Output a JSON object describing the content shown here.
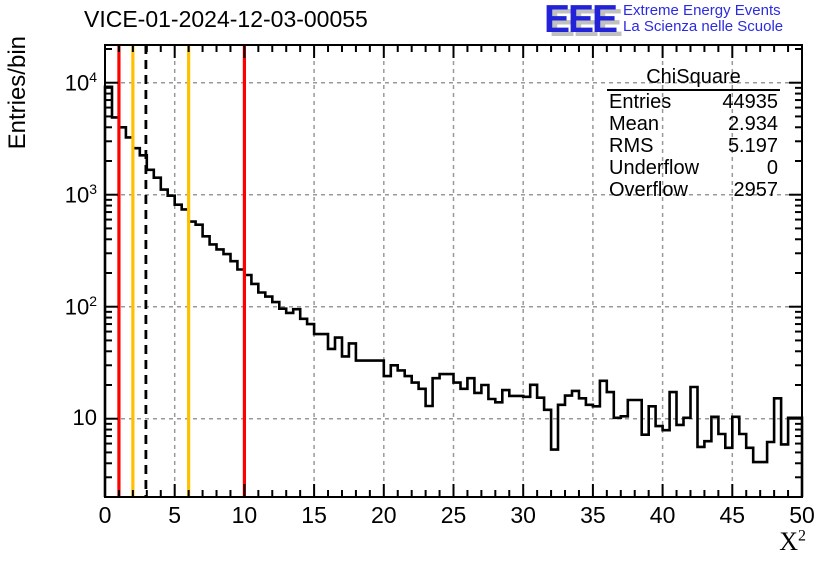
{
  "title": "VICE-01-2024-12-03-00055",
  "logo": {
    "mark": "EEE",
    "line1": "Extreme Energy Events",
    "line2": "La Scienza nelle Scuole",
    "mark_color": "#2222d8",
    "mark_shadow": "#c0c0c0",
    "text_color": "#2b2be0"
  },
  "y_axis": {
    "title": "Entries/bin",
    "scale": "log",
    "ticks": [
      {
        "value": 10,
        "base": "10",
        "exp": ""
      },
      {
        "value": 100,
        "base": "10",
        "exp": "2"
      },
      {
        "value": 1000,
        "base": "10",
        "exp": "3"
      },
      {
        "value": 10000,
        "base": "10",
        "exp": "4"
      }
    ]
  },
  "x_axis": {
    "title_base": "X",
    "title_exp": "2",
    "ticks": [
      0,
      5,
      10,
      15,
      20,
      25,
      30,
      35,
      40,
      45,
      50
    ]
  },
  "stats": {
    "header": "ChiSquare",
    "rows": [
      {
        "label": "Entries",
        "value": "44935"
      },
      {
        "label": "Mean",
        "value": "2.934"
      },
      {
        "label": "RMS",
        "value": "5.197"
      },
      {
        "label": "Underflow",
        "value": "0"
      },
      {
        "label": "Overflow",
        "value": "2957"
      }
    ]
  },
  "chart_data": {
    "type": "bar",
    "subtype": "step-histogram",
    "title": "VICE-01-2024-12-03-00055",
    "xlabel": "X^2",
    "ylabel": "Entries/bin",
    "xlim": [
      0,
      50
    ],
    "ylim": [
      2,
      21700
    ],
    "yscale": "log",
    "grid": {
      "x": [
        5,
        10,
        15,
        20,
        25,
        30,
        35,
        40,
        45
      ],
      "y": [
        10,
        100,
        1000,
        10000
      ],
      "color": "#999999",
      "style": "dashed"
    },
    "bin_start": 0,
    "bin_width": 0.5,
    "values": [
      9200,
      4900,
      4000,
      3250,
      2600,
      2250,
      1670,
      1420,
      1110,
      980,
      815,
      740,
      575,
      540,
      425,
      360,
      325,
      295,
      255,
      215,
      192,
      160,
      134,
      123,
      110,
      96,
      88,
      95,
      78,
      70,
      57,
      57,
      42,
      53,
      36,
      47,
      33,
      33,
      33,
      33,
      24,
      30,
      27,
      24,
      21,
      18.5,
      13,
      23,
      25,
      25,
      21,
      18.5,
      23,
      17,
      20,
      15,
      14,
      18,
      16,
      16,
      15.7,
      20.1,
      15.4,
      12,
      5.3,
      13.3,
      16.1,
      17.7,
      15.2,
      13.3,
      12.9,
      21.8,
      17.3,
      10.2,
      10.5,
      14.7,
      14.7,
      7.2,
      12.9,
      8.6,
      7.9,
      17.3,
      8.8,
      10.2,
      19.2,
      5.6,
      6.3,
      10.4,
      7.3,
      5.5,
      10.4,
      7.3,
      5.5,
      4.1,
      4.1,
      6.2,
      15.2,
      5.9,
      10.2,
      10.2
    ],
    "line_color": "#000000",
    "marker_lines": [
      {
        "x": 1,
        "color": "#ff0000",
        "style": "solid"
      },
      {
        "x": 2,
        "color": "#ffc000",
        "style": "solid"
      },
      {
        "x": 2.934,
        "color": "#000000",
        "style": "dashed"
      },
      {
        "x": 6,
        "color": "#ffc000",
        "style": "solid"
      },
      {
        "x": 10,
        "color": "#ff0000",
        "style": "solid"
      }
    ],
    "legend": "none"
  }
}
